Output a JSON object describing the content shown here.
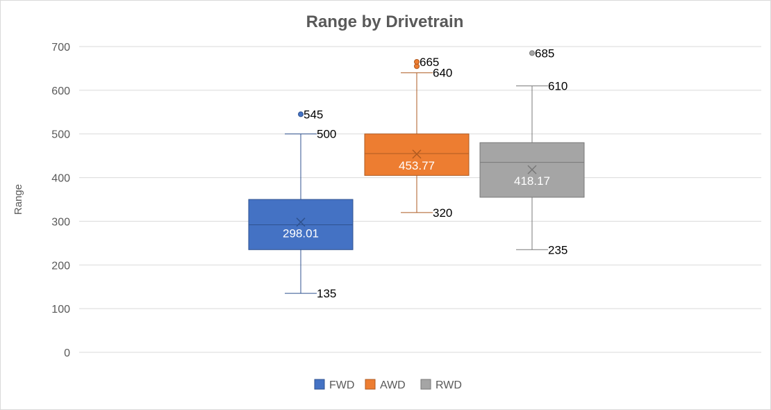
{
  "chart_data": {
    "type": "box",
    "title": "Range by Drivetrain",
    "xlabel": "",
    "ylabel": "Range",
    "ylim": [
      0,
      700
    ],
    "yticks": [
      "0",
      "100",
      "200",
      "300",
      "400",
      "500",
      "600",
      "700"
    ],
    "grid": true,
    "legend_position": "bottom",
    "series": [
      {
        "name": "FWD",
        "color": "#4472c4",
        "min": 135,
        "q1": 235,
        "median": 292,
        "q3": 350,
        "max": 500,
        "mean": 298.01,
        "outliers": [
          545
        ],
        "labels": {
          "min": "135",
          "max": "500",
          "mean": "298.01",
          "outlier": "545"
        }
      },
      {
        "name": "AWD",
        "color": "#ed7d31",
        "min": 320,
        "q1": 405,
        "median": 455,
        "q3": 500,
        "max": 640,
        "mean": 453.77,
        "outliers": [
          655,
          665
        ],
        "labels": {
          "min": "320",
          "max": "640",
          "mean": "453.77",
          "outlier": "665"
        }
      },
      {
        "name": "RWD",
        "color": "#a5a5a5",
        "min": 235,
        "q1": 355,
        "median": 435,
        "q3": 480,
        "max": 610,
        "mean": 418.17,
        "outliers": [
          685
        ],
        "labels": {
          "min": "235",
          "max": "610",
          "mean": "418.17",
          "outlier": "685"
        }
      }
    ]
  }
}
